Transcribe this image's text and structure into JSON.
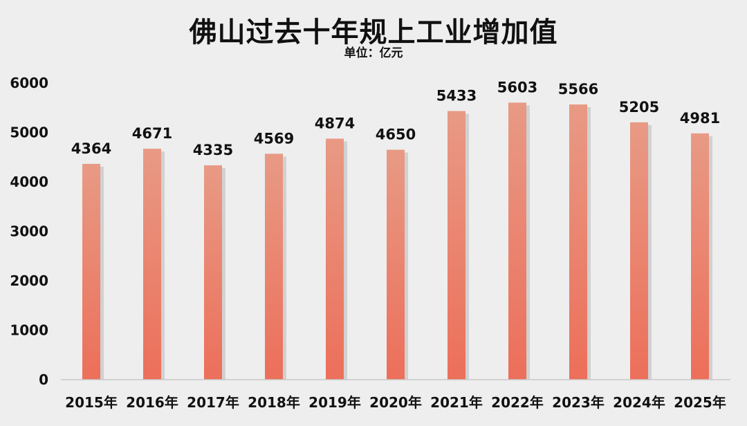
{
  "chart_data": {
    "type": "bar",
    "title": "佛山过去十年规上工业增加值",
    "subtitle": "单位：亿元",
    "categories": [
      "2015年",
      "2016年",
      "2017年",
      "2018年",
      "2019年",
      "2020年",
      "2021年",
      "2022年",
      "2023年",
      "2024年",
      "2025年"
    ],
    "values": [
      4364,
      4671,
      4335,
      4569,
      4874,
      4650,
      5433,
      5603,
      5566,
      5205,
      4981
    ],
    "ylim": [
      0,
      6000
    ],
    "yticks": [
      0,
      1000,
      2000,
      3000,
      4000,
      5000,
      6000
    ],
    "grid": false,
    "legend": "none",
    "colors": {
      "bar_top": "#e89a85",
      "bar_bottom": "#ec6f5a",
      "shadow": "#b9b9b9",
      "axis": "#c8c8c8",
      "background": "#eeeeee"
    }
  }
}
